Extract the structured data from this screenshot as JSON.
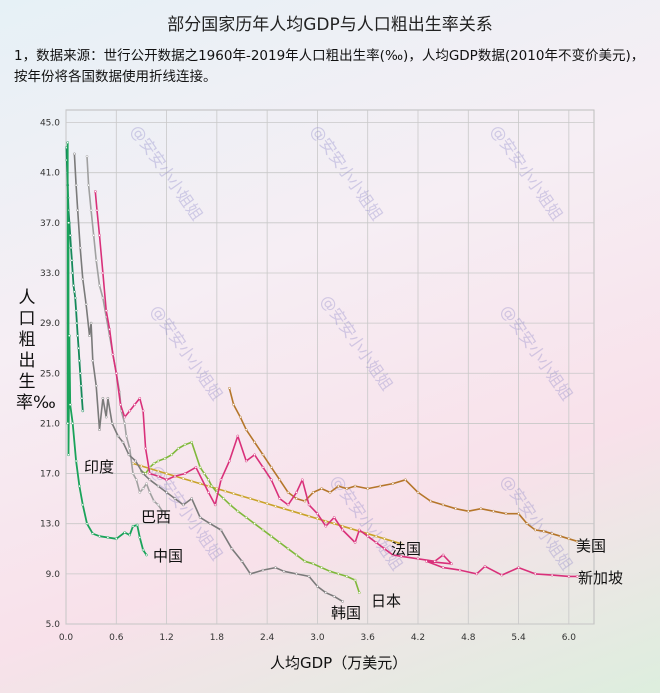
{
  "header": {
    "title": "部分国家历年人均GDP与人口粗出生率关系",
    "note": "1，数据来源：世行公开数据之1960年-2019年人口粗出生率(‰)，人均GDP数据(2010年不变价美元)，按年份将各国数据使用折线连接。"
  },
  "chart_data": {
    "type": "line",
    "title": "部分国家历年人均GDP与人口粗出生率关系",
    "xlabel": "人均GDP（万美元）",
    "ylabel": "人口粗出生率‰",
    "xlim": [
      0,
      6.3
    ],
    "ylim": [
      5,
      46
    ],
    "x_ticks": [
      "0.0",
      "0.6",
      "1.2",
      "1.8",
      "2.4",
      "3.0",
      "3.6",
      "4.2",
      "4.8",
      "5.4",
      "6.0"
    ],
    "y_ticks": [
      "5.0",
      "9.0",
      "13.0",
      "17.0",
      "21.0",
      "25.0",
      "29.0",
      "33.0",
      "37.0",
      "41.0",
      "45.0"
    ],
    "grid": true,
    "series": [
      {
        "name": "中国",
        "color": "#1aa35a",
        "x": [
          0.02,
          0.02,
          0.03,
          0.03,
          0.04,
          0.05,
          0.08,
          0.12,
          0.16,
          0.2,
          0.25,
          0.32,
          0.4,
          0.5,
          0.6,
          0.7,
          0.76,
          0.8,
          0.85,
          0.88,
          0.92,
          0.96
        ],
        "y": [
          43.4,
          21.0,
          37.0,
          18.5,
          28.0,
          22.5,
          21.0,
          18.0,
          16.0,
          14.5,
          13.0,
          12.2,
          12.0,
          11.9,
          11.8,
          12.3,
          12.1,
          12.8,
          12.9,
          11.9,
          10.9,
          10.5
        ]
      },
      {
        "name": "印度",
        "color": "#15895a",
        "x": [
          0.005,
          0.01,
          0.015,
          0.02,
          0.025,
          0.03,
          0.04,
          0.05,
          0.06,
          0.07,
          0.08,
          0.09,
          0.1,
          0.11,
          0.12,
          0.13,
          0.14,
          0.15,
          0.16,
          0.17,
          0.18,
          0.19,
          0.2
        ],
        "y": [
          43.0,
          42.0,
          41.0,
          40.0,
          39.0,
          38.0,
          37.0,
          36.0,
          35.0,
          34.0,
          33.0,
          32.0,
          31.5,
          31.0,
          30.0,
          29.0,
          28.0,
          27.0,
          26.0,
          25.0,
          24.0,
          23.0,
          22.0
        ]
      },
      {
        "name": "韩国",
        "color": "#7a7a7a",
        "x": [
          0.1,
          0.12,
          0.14,
          0.17,
          0.2,
          0.24,
          0.28,
          0.3,
          0.32,
          0.36,
          0.4,
          0.44,
          0.48,
          0.5,
          0.55,
          0.62,
          0.68,
          0.75,
          0.83,
          0.92,
          1.0,
          1.1,
          1.2,
          1.3,
          1.4,
          1.5,
          1.6,
          1.72,
          1.85,
          1.98,
          2.1,
          2.2,
          2.35,
          2.5,
          2.6,
          2.75,
          2.9,
          3.0,
          3.1,
          3.2,
          3.3
        ],
        "y": [
          42.5,
          40.0,
          38.0,
          35.0,
          32.5,
          30.5,
          28.0,
          29.0,
          26.0,
          24.0,
          20.5,
          23.0,
          21.5,
          23.0,
          21.0,
          20.0,
          19.5,
          18.5,
          18.0,
          17.0,
          16.5,
          16.0,
          15.5,
          15.0,
          14.5,
          15.0,
          13.5,
          13.0,
          12.5,
          11.0,
          10.0,
          9.0,
          9.3,
          9.5,
          9.2,
          9.0,
          8.8,
          8.0,
          7.5,
          7.2,
          6.8
        ]
      },
      {
        "name": "巴西",
        "color": "#a0a0a0",
        "x": [
          0.25,
          0.27,
          0.3,
          0.33,
          0.36,
          0.4,
          0.44,
          0.48,
          0.52,
          0.56,
          0.6,
          0.64,
          0.66,
          0.7,
          0.72,
          0.76,
          0.8,
          0.84,
          0.88,
          0.92,
          0.96,
          1.0,
          1.05,
          1.1,
          1.15
        ],
        "y": [
          42.3,
          40.0,
          38.0,
          36.0,
          34.0,
          32.0,
          31.0,
          29.5,
          28.0,
          26.5,
          25.0,
          23.5,
          22.0,
          21.0,
          20.0,
          19.0,
          17.0,
          16.5,
          15.5,
          15.8,
          16.2,
          15.5,
          14.8,
          14.5,
          14.0
        ]
      },
      {
        "name": "新加坡",
        "color": "#d9307a",
        "x": [
          0.35,
          0.37,
          0.4,
          0.44,
          0.48,
          0.52,
          0.56,
          0.6,
          0.65,
          0.7,
          0.76,
          0.82,
          0.88,
          0.92,
          0.95,
          1.0,
          1.1,
          1.2,
          1.3,
          1.42,
          1.55,
          1.7,
          1.78,
          1.85,
          1.95,
          2.05,
          2.15,
          2.25,
          2.35,
          2.45,
          2.55,
          2.65,
          2.75,
          2.82,
          2.9,
          3.0,
          3.1,
          3.2,
          3.3,
          3.45,
          3.5,
          3.6,
          3.7,
          3.8,
          3.9,
          4.0,
          4.2,
          4.4,
          4.5,
          4.6,
          4.3,
          4.5,
          4.7,
          4.9,
          5.0,
          5.2,
          5.4,
          5.6,
          5.8,
          6.0,
          6.1
        ],
        "y": [
          39.5,
          38.0,
          36.0,
          33.0,
          30.0,
          28.5,
          26.5,
          25.0,
          22.5,
          21.5,
          22.0,
          22.5,
          23.0,
          22.0,
          19.0,
          17.0,
          16.8,
          16.5,
          16.8,
          17.0,
          17.5,
          15.5,
          14.5,
          16.5,
          18.0,
          20.0,
          18.0,
          18.5,
          17.5,
          16.5,
          15.0,
          14.5,
          15.5,
          16.5,
          14.5,
          13.8,
          12.8,
          13.5,
          12.5,
          11.5,
          12.5,
          12.0,
          11.5,
          11.0,
          10.5,
          10.4,
          10.2,
          10.0,
          10.5,
          9.8,
          10.0,
          9.5,
          9.3,
          9.0,
          9.6,
          8.9,
          9.5,
          9.0,
          8.9,
          8.8,
          8.8
        ]
      },
      {
        "name": "日本",
        "color": "#7fb83a",
        "x": [
          0.9,
          0.95,
          1.0,
          1.05,
          1.1,
          1.18,
          1.26,
          1.34,
          1.42,
          1.5,
          1.6,
          1.65,
          1.7,
          1.74,
          1.8,
          1.88,
          1.96,
          2.05,
          2.15,
          2.25,
          2.35,
          2.45,
          2.55,
          2.65,
          2.75,
          2.85,
          2.95,
          3.05,
          3.15,
          3.25,
          3.35,
          3.45,
          3.5
        ],
        "y": [
          17.2,
          17.0,
          17.5,
          17.8,
          18.0,
          18.2,
          18.5,
          19.0,
          19.3,
          19.5,
          17.5,
          17.0,
          16.5,
          16.0,
          15.5,
          15.0,
          14.5,
          14.0,
          13.5,
          13.0,
          12.5,
          12.0,
          11.5,
          11.0,
          10.5,
          10.0,
          9.8,
          9.5,
          9.2,
          9.0,
          8.8,
          8.5,
          7.5
        ]
      },
      {
        "name": "法国",
        "color": "#c9a229",
        "x": [
          0.8,
          0.9,
          1.0,
          1.1,
          1.2,
          1.3,
          1.4,
          1.5,
          1.6,
          1.7,
          1.8,
          1.9,
          2.0,
          2.1,
          2.2,
          2.3,
          2.4,
          2.5,
          2.6,
          2.7,
          2.8,
          2.9,
          3.0,
          3.1,
          3.2,
          3.3,
          3.4,
          3.5,
          3.6,
          3.7,
          3.8,
          3.9,
          4.0
        ],
        "y": [
          17.8,
          17.6,
          17.4,
          17.2,
          17.0,
          16.8,
          16.6,
          16.4,
          16.2,
          16.0,
          15.8,
          15.6,
          15.4,
          15.2,
          15.0,
          14.8,
          14.6,
          14.4,
          14.2,
          14.0,
          13.8,
          13.6,
          13.4,
          13.2,
          13.0,
          12.8,
          12.6,
          12.4,
          12.2,
          12.0,
          11.8,
          11.6,
          11.4
        ]
      },
      {
        "name": "美国",
        "color": "#b5762a",
        "x": [
          1.95,
          2.0,
          2.08,
          2.15,
          2.25,
          2.35,
          2.45,
          2.55,
          2.65,
          2.75,
          2.85,
          2.95,
          3.05,
          3.15,
          3.25,
          3.35,
          3.45,
          3.6,
          3.75,
          3.9,
          4.05,
          4.2,
          4.35,
          4.5,
          4.65,
          4.8,
          4.95,
          5.1,
          5.25,
          5.4,
          5.5,
          5.6,
          5.7,
          5.8,
          5.9,
          6.0,
          6.1
        ],
        "y": [
          23.8,
          22.5,
          21.5,
          20.5,
          19.5,
          18.5,
          17.5,
          16.5,
          15.5,
          15.0,
          14.8,
          15.5,
          15.8,
          15.5,
          16.0,
          15.8,
          16.0,
          15.8,
          16.0,
          16.2,
          16.5,
          15.5,
          14.8,
          14.5,
          14.2,
          14.0,
          14.2,
          14.0,
          13.8,
          13.8,
          13.0,
          12.5,
          12.4,
          12.2,
          12.0,
          11.8,
          11.6
        ]
      }
    ],
    "labels": [
      {
        "text": "印度",
        "series": "印度"
      },
      {
        "text": "巴西",
        "series": "巴西"
      },
      {
        "text": "中国",
        "series": "中国"
      },
      {
        "text": "韩国",
        "series": "韩国"
      },
      {
        "text": "日本",
        "series": "日本"
      },
      {
        "text": "法国",
        "series": "法国"
      },
      {
        "text": "新加坡",
        "series": "新加坡"
      },
      {
        "text": "美国",
        "series": "美国"
      }
    ],
    "watermark": "@安安小小姐姐"
  }
}
